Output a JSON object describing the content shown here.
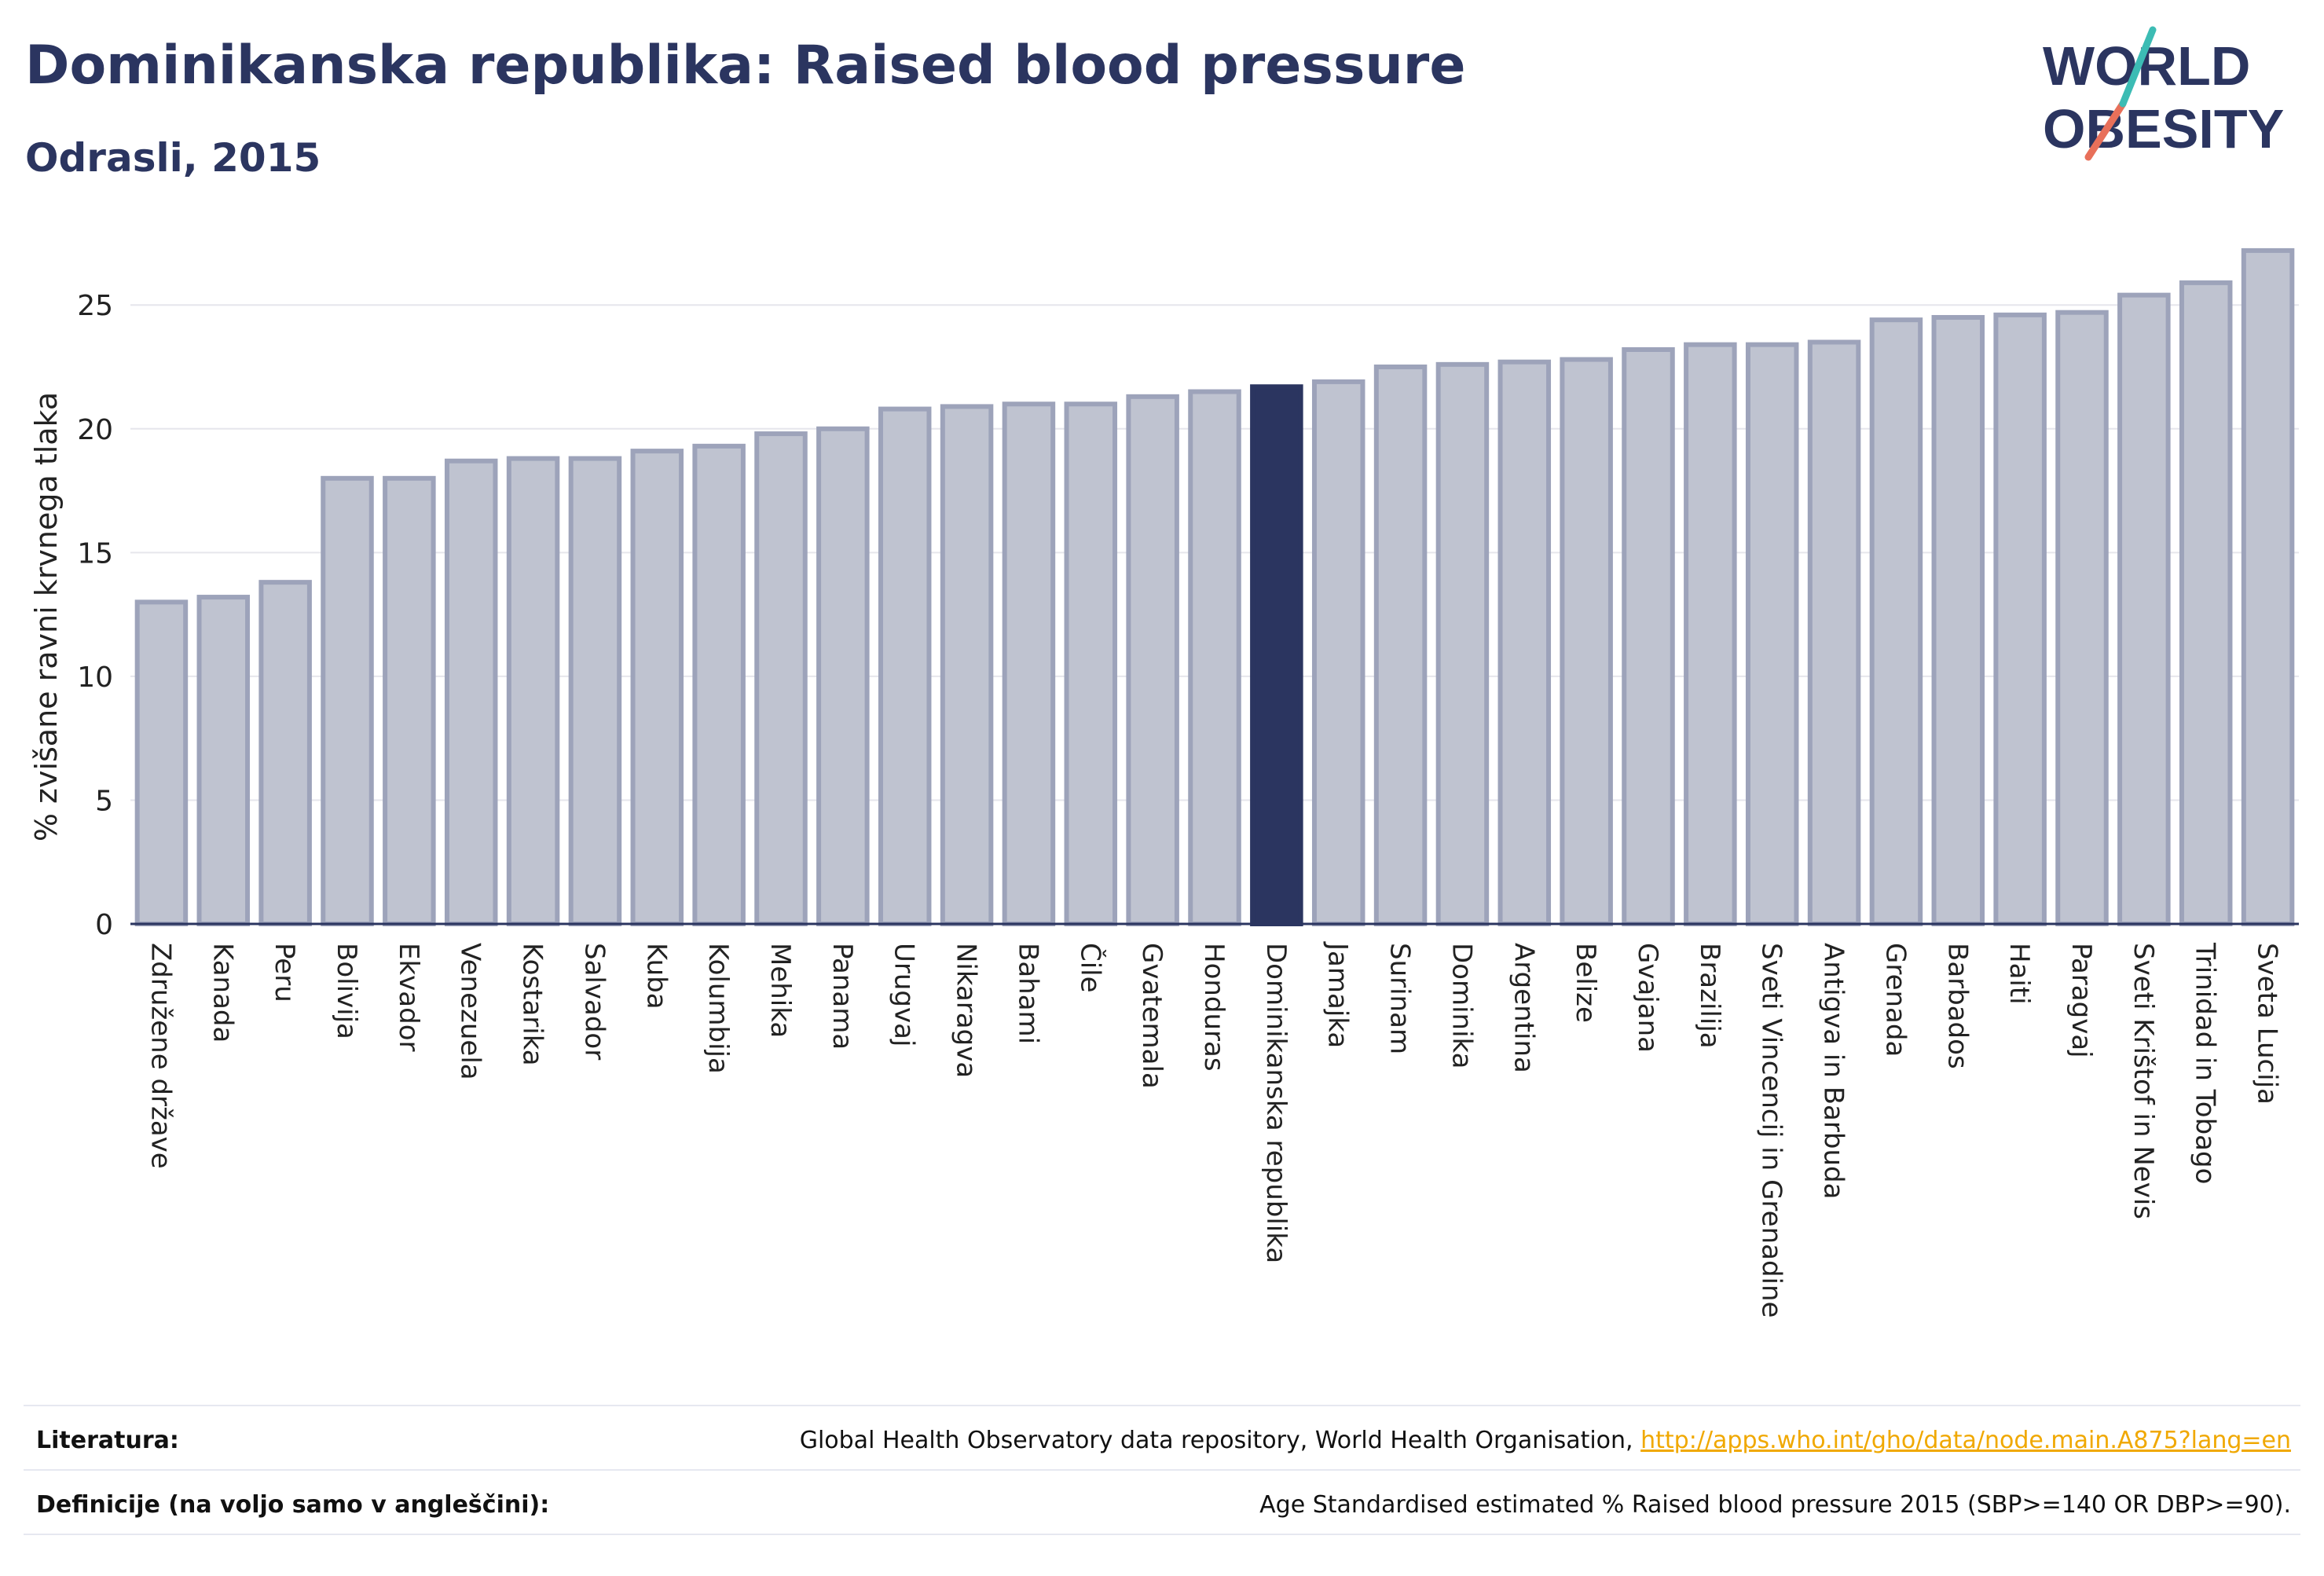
{
  "title": "Dominikanska republika: Raised blood pressure",
  "subtitle": "Odrasli, 2015",
  "logo": {
    "line1": "WORLD",
    "line2": "OBESITY"
  },
  "colors": {
    "bar": "#bfc3d0",
    "bar_edge": "#9da3ba",
    "highlight": "#2b3560",
    "title": "#2b3560",
    "link": "#f0a800",
    "grid": "#e6e6ec"
  },
  "chart_data": {
    "type": "bar",
    "ylabel": "% zvišane ravni krvnega tlaka",
    "ylim": [
      0,
      27.8
    ],
    "yticks": [
      0,
      5,
      10,
      15,
      20,
      25
    ],
    "grid": true,
    "highlight": "Dominikanska republika",
    "categories": [
      "Združene države",
      "Kanada",
      "Peru",
      "Bolivija",
      "Ekvador",
      "Venezuela",
      "Kostarika",
      "Salvador",
      "Kuba",
      "Kolumbija",
      "Mehika",
      "Panama",
      "Urugvaj",
      "Nikaragva",
      "Bahami",
      "Čile",
      "Gvatemala",
      "Honduras",
      "Dominikanska republika",
      "Jamajka",
      "Surinam",
      "Dominika",
      "Argentina",
      "Belize",
      "Gvajana",
      "Brazilija",
      "Sveti Vincencij in Grenadine",
      "Antigva in Barbuda",
      "Grenada",
      "Barbados",
      "Haiti",
      "Paragvaj",
      "Sveti Krištof in Nevis",
      "Trinidad in Tobago",
      "Sveta Lucija"
    ],
    "values": [
      13.0,
      13.2,
      13.8,
      18.0,
      18.0,
      18.7,
      18.8,
      18.8,
      19.1,
      19.3,
      19.8,
      20.0,
      20.8,
      20.9,
      21.0,
      21.0,
      21.3,
      21.5,
      21.7,
      21.9,
      22.5,
      22.6,
      22.7,
      22.8,
      23.2,
      23.4,
      23.4,
      23.5,
      24.4,
      24.5,
      24.6,
      24.7,
      25.4,
      25.9,
      27.2
    ]
  },
  "sources": {
    "literature_label": "Literatura:",
    "literature_text": "Global Health Observatory data repository, World Health Organisation,",
    "literature_link": "http://apps.who.int/gho/data/node.main.A875?lang=en",
    "definition_label": "Definicije (na voljo samo v angleščini):",
    "definition_text": "Age Standardised estimated % Raised blood pressure 2015 (SBP>=140 OR DBP>=90)."
  }
}
